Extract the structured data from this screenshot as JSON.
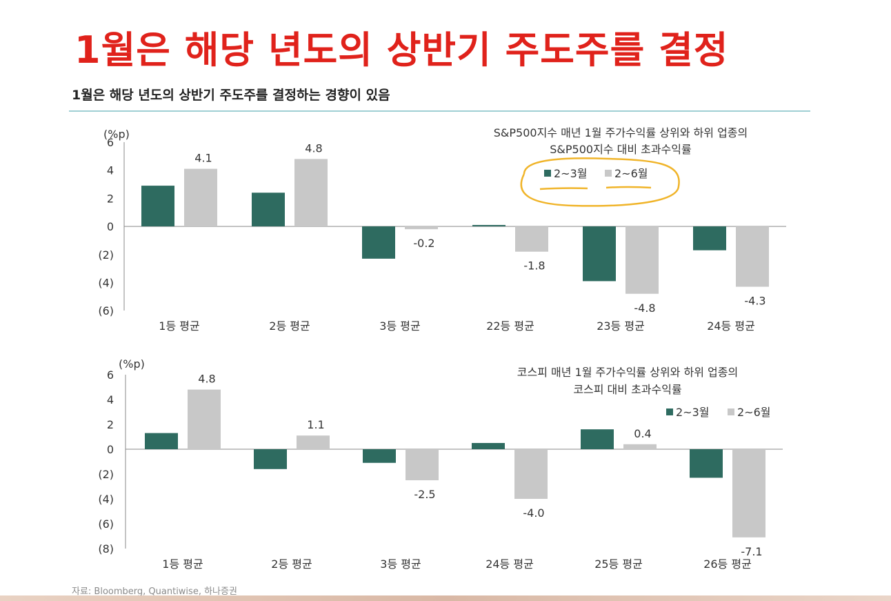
{
  "page": {
    "title": "1월은 해당 년도의 상반기 주도주를 결정",
    "subtitle": "1월은 해당 년도의 상반기 주도주를 결정하는 경향이 있음",
    "source": "자료: Bloomberg, Quantiwise, 하나증권"
  },
  "colors": {
    "series_1": "#2e6b60",
    "series_2": "#c8c8c8",
    "title_red": "#e0221b",
    "highlight": "#f0b429"
  },
  "chart_data": [
    {
      "type": "bar",
      "title": "S&P500지수 매년 1월 주가수익률 상위와 하위 업종의\nS&P500지수 대비 초과수익률",
      "unit": "(%p)",
      "categories": [
        "1등 평균",
        "2등 평균",
        "3등 평균",
        "22등 평균",
        "23등 평균",
        "24등 평균"
      ],
      "series": [
        {
          "name": "2~3월",
          "values": [
            2.9,
            2.4,
            -2.3,
            0.1,
            -3.9,
            -1.7
          ],
          "color": "#2e6b60"
        },
        {
          "name": "2~6월",
          "values": [
            4.1,
            4.8,
            -0.2,
            -1.8,
            -4.8,
            -4.3
          ],
          "color": "#c8c8c8"
        }
      ],
      "data_labels": [
        "4.1",
        "4.8",
        "-0.2",
        "-1.8",
        "-4.8",
        "-4.3"
      ],
      "ylim": [
        -6,
        6
      ],
      "yticks": [
        "6",
        "4",
        "2",
        "0",
        "(2)",
        "(4)",
        "(6)"
      ],
      "legend": "top-right",
      "grid": false
    },
    {
      "type": "bar",
      "title": "코스피 매년 1월 주가수익률 상위와 하위 업종의\n코스피 대비 초과수익률",
      "unit": "(%p)",
      "categories": [
        "1등 평균",
        "2등 평균",
        "3등 평균",
        "24등 평균",
        "25등 평균",
        "26등 평균"
      ],
      "series": [
        {
          "name": "2~3월",
          "values": [
            1.3,
            -1.6,
            -1.1,
            0.5,
            1.6,
            -2.3
          ],
          "color": "#2e6b60"
        },
        {
          "name": "2~6월",
          "values": [
            4.8,
            1.1,
            -2.5,
            -4.0,
            0.4,
            -7.1
          ],
          "color": "#c8c8c8"
        }
      ],
      "data_labels": [
        "4.8",
        "1.1",
        "-2.5",
        "-4.0",
        "0.4",
        "-7.1"
      ],
      "ylim": [
        -8,
        6
      ],
      "yticks": [
        "6",
        "4",
        "2",
        "0",
        "(2)",
        "(4)",
        "(6)",
        "(8)"
      ],
      "legend": "right",
      "grid": false
    }
  ]
}
